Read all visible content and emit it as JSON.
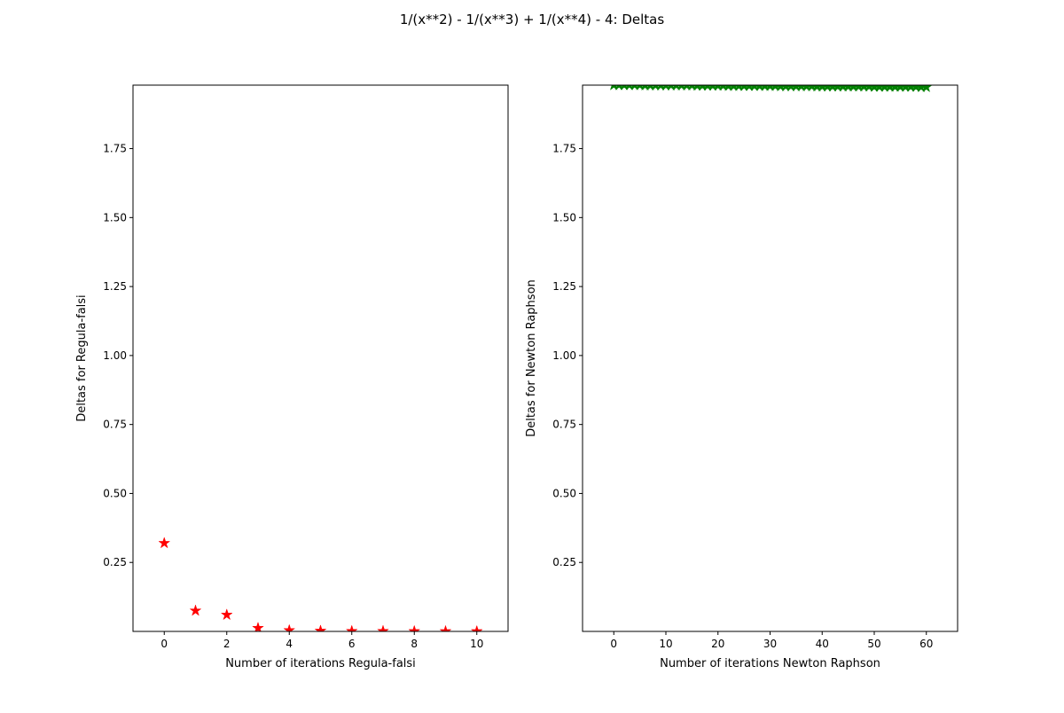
{
  "figure": {
    "suptitle": "1/(x**2) - 1/(x**3) + 1/(x**4) - 4: Deltas"
  },
  "chart_data": [
    {
      "type": "scatter",
      "marker": "star",
      "color": "#ff0000",
      "xlabel": "Number of iterations Regula-falsi",
      "ylabel": "Deltas for Regula-falsi",
      "xlim": [
        -1,
        11
      ],
      "ylim": [
        0.0,
        1.98
      ],
      "xticks": [
        0,
        2,
        4,
        6,
        8,
        10
      ],
      "yticks": [
        0.25,
        0.5,
        0.75,
        1.0,
        1.25,
        1.5,
        1.75
      ],
      "ytick_labels": [
        "0.25",
        "0.50",
        "0.75",
        "1.00",
        "1.25",
        "1.50",
        "1.75"
      ],
      "x": [
        0,
        1,
        2,
        3,
        4,
        5,
        6,
        7,
        8,
        9,
        10
      ],
      "y": [
        0.32,
        0.075,
        0.06,
        0.012,
        0.004,
        0.002,
        0.001,
        0.001,
        0.0005,
        0.0003,
        0.0002
      ]
    },
    {
      "type": "line",
      "marker": "star",
      "color": "#008000",
      "xlabel": "Number of iterations Newton Raphson",
      "ylabel": "Deltas for Newton Raphson",
      "xlim": [
        -6,
        66
      ],
      "ylim": [
        0.0,
        1.98
      ],
      "xticks": [
        0,
        10,
        20,
        30,
        40,
        50,
        60
      ],
      "yticks": [
        0.25,
        0.5,
        0.75,
        1.0,
        1.25,
        1.5,
        1.75
      ],
      "ytick_labels": [
        "0.25",
        "0.50",
        "0.75",
        "1.00",
        "1.25",
        "1.50",
        "1.75"
      ],
      "x": [
        0,
        1,
        2,
        3,
        4,
        5,
        6,
        7,
        8,
        9,
        10,
        11,
        12,
        13,
        14,
        15,
        16,
        17,
        18,
        19,
        20,
        21,
        22,
        23,
        24,
        25,
        26,
        27,
        28,
        29,
        30,
        31,
        32,
        33,
        34,
        35,
        36,
        37,
        38,
        39,
        40,
        41,
        42,
        43,
        44,
        45,
        46,
        47,
        48,
        49,
        50,
        51,
        52,
        53,
        54,
        55,
        56,
        57,
        58,
        59,
        60
      ],
      "y": [
        1.98,
        1.98,
        1.98,
        1.98,
        1.98,
        1.98,
        1.979,
        1.979,
        1.979,
        1.979,
        1.979,
        1.979,
        1.979,
        1.979,
        1.979,
        1.979,
        1.978,
        1.978,
        1.978,
        1.978,
        1.978,
        1.978,
        1.977,
        1.977,
        1.977,
        1.977,
        1.977,
        1.977,
        1.977,
        1.977,
        1.977,
        1.977,
        1.976,
        1.976,
        1.976,
        1.976,
        1.976,
        1.976,
        1.976,
        1.975,
        1.975,
        1.975,
        1.975,
        1.975,
        1.975,
        1.975,
        1.975,
        1.975,
        1.975,
        1.975,
        1.974,
        1.974,
        1.974,
        1.974,
        1.974,
        1.974,
        1.974,
        1.974,
        1.974,
        1.973,
        1.973
      ]
    }
  ]
}
